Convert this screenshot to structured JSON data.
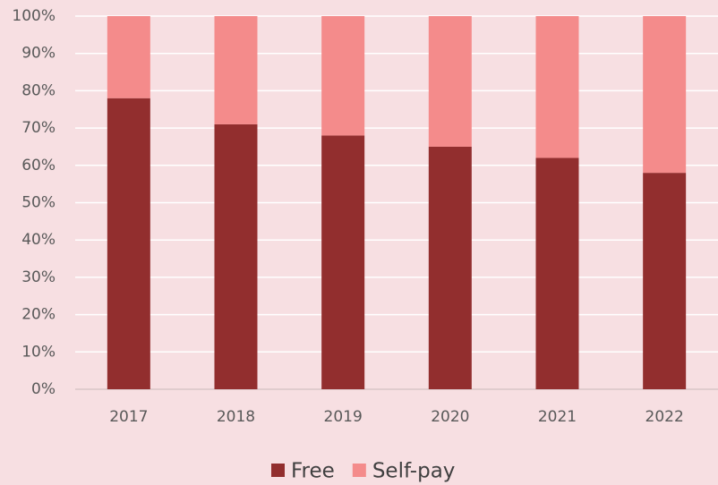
{
  "chart_data": {
    "type": "stacked_bar",
    "categories": [
      "2017",
      "2018",
      "2019",
      "2020",
      "2021",
      "2022"
    ],
    "series": [
      {
        "name": "Free",
        "color": "#922e2e",
        "values": [
          78,
          71,
          68,
          65,
          62,
          58
        ]
      },
      {
        "name": "Self-pay",
        "color": "#f48b8b",
        "values": [
          22,
          29,
          32,
          35,
          38,
          42
        ]
      }
    ],
    "ylim": [
      0,
      100
    ],
    "yticks": [
      {
        "value": 0,
        "label": "0%"
      },
      {
        "value": 10,
        "label": "10%"
      },
      {
        "value": 20,
        "label": "20%"
      },
      {
        "value": 30,
        "label": "30%"
      },
      {
        "value": 40,
        "label": "40%"
      },
      {
        "value": 50,
        "label": "50%"
      },
      {
        "value": 60,
        "label": "60%"
      },
      {
        "value": 70,
        "label": "70%"
      },
      {
        "value": 80,
        "label": "80%"
      },
      {
        "value": 90,
        "label": "90%"
      },
      {
        "value": 100,
        "label": "100%"
      }
    ],
    "grid": true,
    "legend": "bottom"
  }
}
